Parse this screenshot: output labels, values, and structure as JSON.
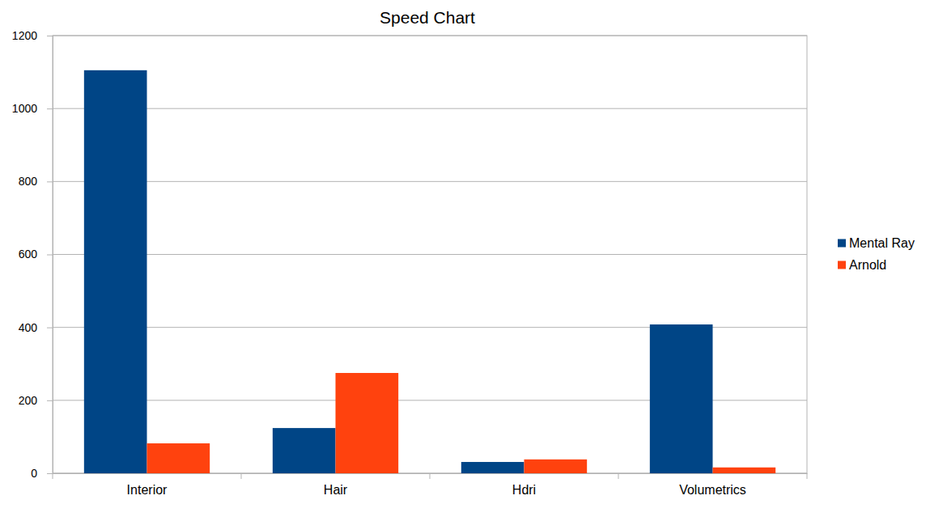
{
  "chart_data": {
    "type": "bar",
    "title": "Speed Chart",
    "categories": [
      "Interior",
      "Hair",
      "Hdri",
      "Volumetrics"
    ],
    "series": [
      {
        "name": "Mental Ray",
        "color": "#004586",
        "values": [
          1105,
          124,
          31,
          408
        ]
      },
      {
        "name": "Arnold",
        "color": "#ff420e",
        "values": [
          82,
          275,
          38,
          16
        ]
      }
    ],
    "ylim": [
      0,
      1200
    ],
    "yticks": [
      0,
      200,
      400,
      600,
      800,
      1000,
      1200
    ],
    "grid": true,
    "legend": "right"
  }
}
